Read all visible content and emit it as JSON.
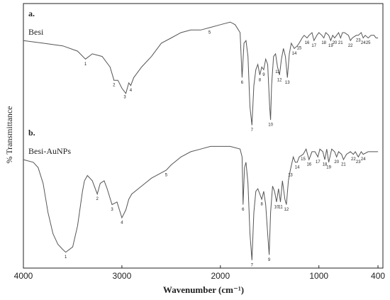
{
  "chart_data": {
    "type": "line",
    "xlabel": "Wavenumber (cm⁻¹)",
    "ylabel": "% Transmittance",
    "panel_labels": [
      "a.",
      "b."
    ],
    "xlim": [
      4000,
      350
    ],
    "xticks": [
      4000,
      3000,
      2000,
      1000,
      400
    ],
    "ylim": [
      0,
      100
    ],
    "series": [
      {
        "name": "Besi",
        "color": "#555555",
        "x": [
          4000,
          3800,
          3600,
          3450,
          3370,
          3300,
          3200,
          3120,
          3080,
          3040,
          3000,
          2960,
          2930,
          2910,
          2880,
          2800,
          2700,
          2600,
          2500,
          2400,
          2300,
          2200,
          2100,
          2000,
          1900,
          1850,
          1800,
          1780,
          1760,
          1740,
          1720,
          1700,
          1680,
          1660,
          1640,
          1620,
          1600,
          1580,
          1560,
          1540,
          1520,
          1500,
          1490,
          1480,
          1460,
          1440,
          1420,
          1400,
          1380,
          1360,
          1340,
          1320,
          1300,
          1280,
          1250,
          1220,
          1200,
          1170,
          1150,
          1120,
          1100,
          1070,
          1050,
          1020,
          1000,
          970,
          950,
          930,
          900,
          880,
          860,
          840,
          820,
          800,
          780,
          760,
          740,
          700,
          680,
          660,
          620,
          600,
          570,
          550,
          530,
          500,
          470,
          440,
          420,
          400
        ],
        "values": [
          86,
          85,
          84,
          82,
          79,
          81,
          80,
          76,
          71,
          71,
          68,
          66,
          70,
          69,
          72,
          76,
          80,
          85,
          87,
          89,
          90,
          90,
          91,
          92,
          93,
          92,
          89,
          72,
          85,
          86,
          80,
          61,
          54,
          69,
          75,
          77,
          73,
          76,
          75,
          79,
          77,
          61,
          56,
          69,
          80,
          81,
          76,
          73,
          79,
          83,
          80,
          72,
          81,
          85,
          83,
          84,
          85,
          87,
          88,
          87,
          88,
          89,
          86,
          88,
          89,
          88,
          87,
          89,
          88,
          86,
          88,
          87,
          88,
          89,
          87,
          89,
          89,
          88,
          86,
          87,
          88,
          88,
          89,
          87,
          88,
          87,
          88,
          88,
          87,
          87
        ],
        "peaks": [
          {
            "label": "1",
            "x": 3370
          },
          {
            "label": "2",
            "x": 3080
          },
          {
            "label": "3",
            "x": 2970
          },
          {
            "label": "4",
            "x": 2910
          },
          {
            "label": "5",
            "x": 2110
          },
          {
            "label": "6",
            "x": 1780
          },
          {
            "label": "7",
            "x": 1680
          },
          {
            "label": "8",
            "x": 1600
          },
          {
            "label": "9",
            "x": 1560
          },
          {
            "label": "10",
            "x": 1490
          },
          {
            "label": "11",
            "x": 1420
          },
          {
            "label": "12",
            "x": 1400
          },
          {
            "label": "13",
            "x": 1320
          },
          {
            "label": "14",
            "x": 1250
          },
          {
            "label": "15",
            "x": 1200
          },
          {
            "label": "16",
            "x": 1120
          },
          {
            "label": "17",
            "x": 1050
          },
          {
            "label": "18",
            "x": 950
          },
          {
            "label": "19",
            "x": 880
          },
          {
            "label": "20",
            "x": 840
          },
          {
            "label": "21",
            "x": 780
          },
          {
            "label": "22",
            "x": 680
          },
          {
            "label": "23",
            "x": 600
          },
          {
            "label": "24",
            "x": 550
          },
          {
            "label": "25",
            "x": 500
          }
        ]
      },
      {
        "name": "Besi-AuNPs",
        "color": "#555555",
        "x": [
          4000,
          3900,
          3850,
          3800,
          3750,
          3700,
          3650,
          3600,
          3570,
          3500,
          3450,
          3400,
          3380,
          3350,
          3300,
          3250,
          3220,
          3180,
          3150,
          3100,
          3050,
          3000,
          2960,
          2930,
          2900,
          2800,
          2700,
          2600,
          2550,
          2500,
          2400,
          2300,
          2200,
          2100,
          2000,
          1900,
          1800,
          1780,
          1770,
          1755,
          1740,
          1720,
          1700,
          1680,
          1660,
          1640,
          1620,
          1600,
          1580,
          1560,
          1540,
          1520,
          1505,
          1490,
          1470,
          1450,
          1430,
          1410,
          1390,
          1370,
          1345,
          1330,
          1310,
          1290,
          1260,
          1240,
          1220,
          1200,
          1160,
          1130,
          1100,
          1070,
          1040,
          1010,
          990,
          960,
          940,
          920,
          900,
          870,
          840,
          820,
          800,
          770,
          750,
          720,
          680,
          650,
          630,
          600,
          570,
          550,
          500,
          450,
          400
        ],
        "values": [
          41,
          40,
          38,
          32,
          21,
          13,
          9,
          7,
          6,
          8,
          16,
          29,
          33,
          35,
          33,
          28,
          32,
          33,
          30,
          24,
          25,
          19,
          22,
          26,
          28,
          31,
          34,
          36,
          37,
          39,
          42,
          44,
          45,
          46,
          46,
          46,
          45,
          42,
          24,
          38,
          40,
          32,
          13,
          3,
          21,
          29,
          30,
          28,
          26,
          29,
          24,
          13,
          5,
          21,
          31,
          29,
          25,
          30,
          25,
          33,
          26,
          24,
          33,
          37,
          42,
          40,
          40,
          42,
          43,
          45,
          41,
          44,
          44,
          42,
          45,
          44,
          41,
          45,
          40,
          45,
          44,
          42,
          44,
          43,
          41,
          43,
          44,
          43,
          44,
          42,
          44,
          43,
          44,
          44,
          44
        ],
        "peaks": [
          {
            "label": "1",
            "x": 3570
          },
          {
            "label": "2",
            "x": 3250
          },
          {
            "label": "3",
            "x": 3100
          },
          {
            "label": "4",
            "x": 3000
          },
          {
            "label": "5",
            "x": 2550
          },
          {
            "label": "6",
            "x": 1770
          },
          {
            "label": "7",
            "x": 1680
          },
          {
            "label": "8",
            "x": 1580
          },
          {
            "label": "9",
            "x": 1505
          },
          {
            "label": "10",
            "x": 1430
          },
          {
            "label": "11",
            "x": 1390
          },
          {
            "label": "12",
            "x": 1330
          },
          {
            "label": "13",
            "x": 1290
          },
          {
            "label": "14",
            "x": 1220
          },
          {
            "label": "15",
            "x": 1160
          },
          {
            "label": "16",
            "x": 1100
          },
          {
            "label": "17",
            "x": 1010
          },
          {
            "label": "18",
            "x": 940
          },
          {
            "label": "19",
            "x": 900
          },
          {
            "label": "20",
            "x": 820
          },
          {
            "label": "21",
            "x": 750
          },
          {
            "label": "22",
            "x": 650
          },
          {
            "label": "23",
            "x": 600
          },
          {
            "label": "24",
            "x": 550
          }
        ]
      }
    ]
  }
}
